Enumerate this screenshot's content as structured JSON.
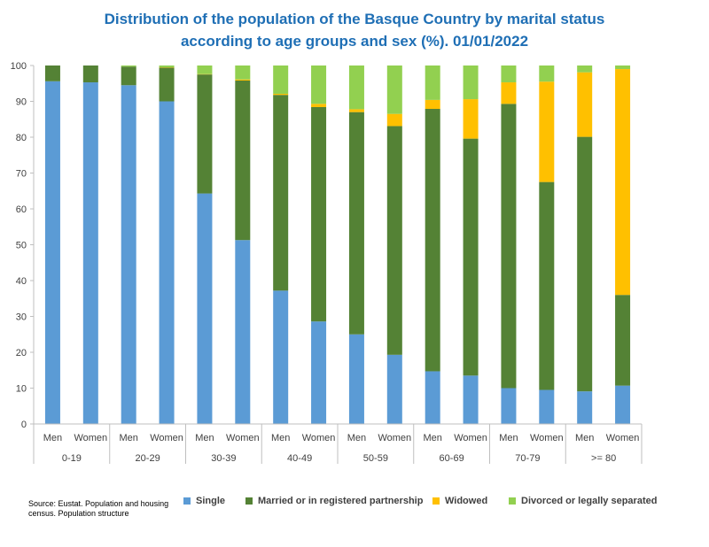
{
  "title_lines": [
    "Distribution of the population of the Basque Country by marital status",
    "according to age groups and sex (%). 01/01/2022"
  ],
  "source": "Source: Eustat. Population and housing census. Population structure",
  "colors": {
    "single": "#5b9bd5",
    "married": "#548235",
    "widowed": "#ffc000",
    "divorced": "#92d050",
    "axis": "#bfbfbf",
    "text": "#404040"
  },
  "chart_data": {
    "type": "bar",
    "stacked": true,
    "title": "Distribution of the population of the Basque Country by marital status according to age groups and sex (%). 01/01/2022",
    "ylim": [
      0,
      100
    ],
    "yticks": [
      0,
      10,
      20,
      30,
      40,
      50,
      60,
      70,
      80,
      90,
      100
    ],
    "grid": false,
    "legend_position": "bottom",
    "groups": [
      "0-19",
      "20-29",
      "30-39",
      "40-49",
      "50-59",
      "60-69",
      "70-79",
      ">= 80"
    ],
    "subcategories": [
      "Men",
      "Women"
    ],
    "categories": [
      "0-19 Men",
      "0-19 Women",
      "20-29 Men",
      "20-29 Women",
      "30-39 Men",
      "30-39 Women",
      "40-49 Men",
      "40-49 Women",
      "50-59 Men",
      "50-59 Women",
      "60-69 Men",
      "60-69 Women",
      "70-79 Men",
      "70-79 Women",
      ">= 80 Men",
      ">= 80 Women"
    ],
    "series": [
      {
        "key": "single",
        "name": "Single",
        "values": [
          95.6,
          95.3,
          94.5,
          90.0,
          64.3,
          51.3,
          37.2,
          28.6,
          25.0,
          19.3,
          14.7,
          13.5,
          10.0,
          9.5,
          9.1,
          10.7
        ]
      },
      {
        "key": "married",
        "name": "Married or in registered partnership",
        "values": [
          4.4,
          4.7,
          5.2,
          9.4,
          33.2,
          44.5,
          54.6,
          59.8,
          62.0,
          63.8,
          73.2,
          66.1,
          79.3,
          58.0,
          71.0,
          25.3
        ]
      },
      {
        "key": "widowed",
        "name": "Widowed",
        "values": [
          0.0,
          0.0,
          0.0,
          0.1,
          0.1,
          0.3,
          0.3,
          0.9,
          0.8,
          3.4,
          2.5,
          11.0,
          6.0,
          28.0,
          18.0,
          63.0
        ]
      },
      {
        "key": "divorced",
        "name": "Divorced or legally separated",
        "values": [
          0.0,
          0.0,
          0.3,
          0.5,
          2.4,
          3.9,
          7.9,
          10.7,
          12.2,
          13.5,
          9.6,
          9.4,
          4.7,
          4.5,
          1.9,
          1.0
        ]
      }
    ]
  }
}
